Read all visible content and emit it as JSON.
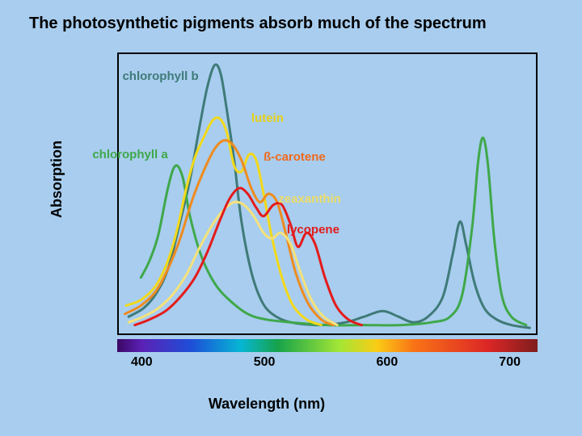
{
  "title": "The photosynthetic pigments absorb much of the spectrum",
  "chart": {
    "type": "line",
    "background_color": "#a8cdee",
    "border_color": "#000000",
    "x_axis": {
      "label": "Wavelength (nm)",
      "min": 380,
      "max": 720,
      "ticks": [
        400,
        500,
        600,
        700
      ]
    },
    "y_axis": {
      "label": "Absorption",
      "min": 0,
      "max": 100
    },
    "spectrum_bar": {
      "stops": [
        {
          "nm": 380,
          "color": "#3b0764"
        },
        {
          "nm": 400,
          "color": "#5b21b6"
        },
        {
          "nm": 440,
          "color": "#1d4ed8"
        },
        {
          "nm": 480,
          "color": "#06b6d4"
        },
        {
          "nm": 510,
          "color": "#16a34a"
        },
        {
          "nm": 560,
          "color": "#a3e635"
        },
        {
          "nm": 590,
          "color": "#facc15"
        },
        {
          "nm": 620,
          "color": "#f97316"
        },
        {
          "nm": 680,
          "color": "#dc2626"
        },
        {
          "nm": 720,
          "color": "#7f1d1d"
        }
      ]
    },
    "line_width": 3,
    "series": [
      {
        "id": "chlorophyll_b",
        "label": "chlorophyll b",
        "color": "#3f7a78",
        "label_color": "#3f7a78",
        "label_pos_nm": 445,
        "label_pos_abs": 92,
        "label_anchor": "end",
        "points": [
          [
            388,
            6
          ],
          [
            400,
            9
          ],
          [
            410,
            14
          ],
          [
            420,
            23
          ],
          [
            430,
            40
          ],
          [
            438,
            55
          ],
          [
            445,
            72
          ],
          [
            452,
            88
          ],
          [
            458,
            96
          ],
          [
            463,
            93
          ],
          [
            468,
            80
          ],
          [
            474,
            62
          ],
          [
            480,
            40
          ],
          [
            488,
            22
          ],
          [
            496,
            12
          ],
          [
            505,
            7
          ],
          [
            520,
            4
          ],
          [
            545,
            3
          ],
          [
            565,
            4
          ],
          [
            580,
            6
          ],
          [
            595,
            8
          ],
          [
            608,
            6
          ],
          [
            620,
            4
          ],
          [
            632,
            6
          ],
          [
            644,
            13
          ],
          [
            652,
            28
          ],
          [
            658,
            40
          ],
          [
            663,
            32
          ],
          [
            670,
            18
          ],
          [
            678,
            9
          ],
          [
            688,
            5
          ],
          [
            700,
            3
          ],
          [
            715,
            2
          ]
        ]
      },
      {
        "id": "chlorophyll_a",
        "label": "chlorophyll a",
        "color": "#3fa84a",
        "label_color": "#3fa84a",
        "label_pos_nm": 420,
        "label_pos_abs": 64,
        "label_anchor": "end",
        "points": [
          [
            398,
            20
          ],
          [
            405,
            26
          ],
          [
            412,
            35
          ],
          [
            420,
            52
          ],
          [
            426,
            60
          ],
          [
            432,
            56
          ],
          [
            438,
            42
          ],
          [
            447,
            28
          ],
          [
            458,
            18
          ],
          [
            470,
            12
          ],
          [
            485,
            7
          ],
          [
            500,
            5
          ],
          [
            520,
            4
          ],
          [
            550,
            3
          ],
          [
            580,
            3
          ],
          [
            610,
            3
          ],
          [
            635,
            4
          ],
          [
            650,
            6
          ],
          [
            660,
            14
          ],
          [
            668,
            38
          ],
          [
            673,
            62
          ],
          [
            677,
            70
          ],
          [
            681,
            60
          ],
          [
            686,
            34
          ],
          [
            692,
            14
          ],
          [
            700,
            6
          ],
          [
            712,
            3
          ]
        ]
      },
      {
        "id": "lutein",
        "label": "lutein",
        "color": "#f3d91a",
        "label_color": "#e7d017",
        "label_pos_nm": 488,
        "label_pos_abs": 77,
        "label_anchor": "start",
        "points": [
          [
            386,
            10
          ],
          [
            398,
            12
          ],
          [
            410,
            17
          ],
          [
            420,
            26
          ],
          [
            428,
            38
          ],
          [
            435,
            52
          ],
          [
            442,
            63
          ],
          [
            449,
            70
          ],
          [
            456,
            76
          ],
          [
            462,
            77
          ],
          [
            468,
            72
          ],
          [
            474,
            60
          ],
          [
            480,
            58
          ],
          [
            486,
            64
          ],
          [
            492,
            62
          ],
          [
            498,
            50
          ],
          [
            505,
            34
          ],
          [
            513,
            20
          ],
          [
            522,
            10
          ],
          [
            533,
            5
          ],
          [
            545,
            3
          ]
        ]
      },
      {
        "id": "b_carotene",
        "label": "ß-carotene",
        "color": "#ef8b1e",
        "label_color": "#ef6a1e",
        "label_pos_nm": 498,
        "label_pos_abs": 63,
        "label_anchor": "start",
        "points": [
          [
            385,
            7
          ],
          [
            398,
            10
          ],
          [
            410,
            15
          ],
          [
            420,
            23
          ],
          [
            430,
            34
          ],
          [
            440,
            48
          ],
          [
            450,
            59
          ],
          [
            458,
            66
          ],
          [
            465,
            69
          ],
          [
            472,
            68
          ],
          [
            480,
            62
          ],
          [
            488,
            52
          ],
          [
            495,
            47
          ],
          [
            502,
            50
          ],
          [
            509,
            47
          ],
          [
            516,
            36
          ],
          [
            524,
            22
          ],
          [
            534,
            11
          ],
          [
            545,
            5
          ],
          [
            555,
            3
          ]
        ]
      },
      {
        "id": "zeaxanthin",
        "label": "zeaxanthin",
        "color": "#f5e27a",
        "label_color": "#eddc66",
        "label_pos_nm": 510,
        "label_pos_abs": 48,
        "label_anchor": "start",
        "points": [
          [
            388,
            4
          ],
          [
            400,
            6
          ],
          [
            412,
            9
          ],
          [
            424,
            14
          ],
          [
            435,
            21
          ],
          [
            445,
            30
          ],
          [
            455,
            38
          ],
          [
            465,
            44
          ],
          [
            474,
            47
          ],
          [
            482,
            46
          ],
          [
            490,
            42
          ],
          [
            498,
            36
          ],
          [
            505,
            34
          ],
          [
            512,
            36
          ],
          [
            520,
            32
          ],
          [
            528,
            22
          ],
          [
            537,
            12
          ],
          [
            547,
            6
          ],
          [
            558,
            3
          ]
        ]
      },
      {
        "id": "lycopene",
        "label": "lycopene",
        "color": "#e41b1b",
        "label_color": "#e41b1b",
        "label_pos_nm": 517,
        "label_pos_abs": 37,
        "label_anchor": "start",
        "points": [
          [
            393,
            3
          ],
          [
            405,
            5
          ],
          [
            418,
            8
          ],
          [
            430,
            13
          ],
          [
            442,
            20
          ],
          [
            452,
            29
          ],
          [
            462,
            40
          ],
          [
            470,
            48
          ],
          [
            478,
            52
          ],
          [
            485,
            50
          ],
          [
            492,
            45
          ],
          [
            498,
            42
          ],
          [
            506,
            46
          ],
          [
            513,
            46
          ],
          [
            520,
            39
          ],
          [
            526,
            31
          ],
          [
            533,
            36
          ],
          [
            540,
            32
          ],
          [
            548,
            20
          ],
          [
            557,
            10
          ],
          [
            567,
            5
          ],
          [
            578,
            3
          ]
        ]
      }
    ]
  }
}
